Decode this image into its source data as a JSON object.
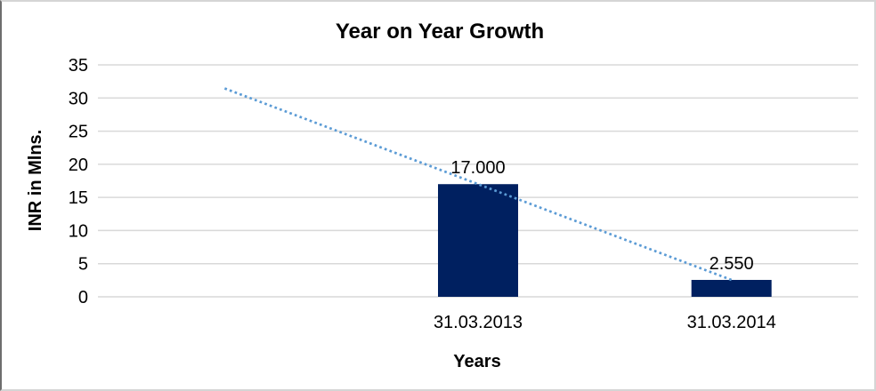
{
  "chart_data": {
    "type": "bar",
    "title": "Year on Year Growth",
    "xlabel": "Years",
    "ylabel": "INR in Mlns.",
    "categories": [
      "31.03.2013",
      "31.03.2014"
    ],
    "values": [
      17.0,
      2.55
    ],
    "value_labels": [
      "17.000",
      "2.550"
    ],
    "ylim": [
      0,
      35
    ],
    "yticks": [
      0,
      5,
      10,
      15,
      20,
      25,
      30,
      35
    ],
    "grid": "horizontal",
    "grid_color": "#D9D9D9",
    "legend": "none",
    "bar_color": "#002060",
    "text_color": "#000000",
    "trendline": {
      "type": "linear",
      "style": "dotted",
      "color": "#5B9BD5",
      "points": [
        {
          "slot": 0,
          "value": 31.45
        },
        {
          "slot": 2,
          "value": 2.55
        }
      ]
    },
    "layout": {
      "category_slots": 3,
      "category_slot_indices": [
        1,
        2
      ],
      "legend_position": "none"
    }
  }
}
